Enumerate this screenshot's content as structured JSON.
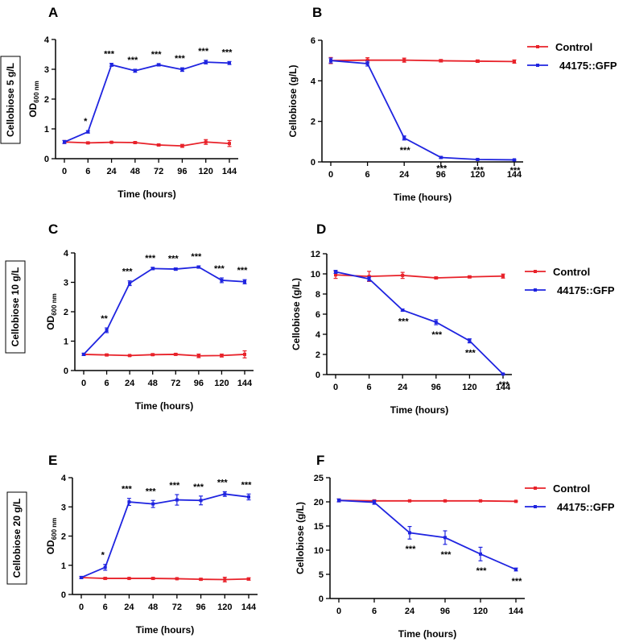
{
  "colors": {
    "control": "#e8222a",
    "gfp": "#1f24e0",
    "axis": "#000000"
  },
  "row_labels": [
    "Cellobiose 5 g/L",
    "Cellobiose 10 g/L",
    "Cellobiose 20 g/L"
  ],
  "legend": {
    "control": "Control",
    "gfp": "44175::GFP"
  },
  "chart_data": [
    {
      "panel": "A",
      "type": "line",
      "xlabel": "Time (hours)",
      "ylabel_main": "OD",
      "ylabel_sub": "600 nm",
      "categories": [
        "0",
        "6",
        "24",
        "48",
        "72",
        "96",
        "120",
        "144"
      ],
      "ylim": [
        0,
        4
      ],
      "yticks": [
        0,
        1,
        2,
        3,
        4
      ],
      "series": [
        {
          "name": "Control",
          "values": [
            0.56,
            0.53,
            0.55,
            0.54,
            0.46,
            0.43,
            0.56,
            0.51
          ],
          "errors": [
            0.05,
            0.03,
            0.02,
            0.03,
            0.03,
            0.05,
            0.08,
            0.1
          ]
        },
        {
          "name": "44175::GFP",
          "values": [
            0.56,
            0.9,
            3.15,
            2.95,
            3.15,
            2.99,
            3.24,
            3.21
          ],
          "errors": [
            0.05,
            0.04,
            0.05,
            0.05,
            0.04,
            0.06,
            0.06,
            0.05
          ]
        }
      ],
      "significance": [
        "",
        "*",
        "***",
        "***",
        "***",
        "***",
        "***",
        "***"
      ]
    },
    {
      "panel": "B",
      "type": "line",
      "xlabel": "Time (hours)",
      "ylabel_main": "Cellobiose (g/L)",
      "ylabel_sub": "",
      "categories": [
        "0",
        "6",
        "24",
        "96",
        "120",
        "144"
      ],
      "ylim": [
        0,
        6
      ],
      "yticks": [
        0,
        2,
        4,
        6
      ],
      "series": [
        {
          "name": "Control",
          "values": [
            5.0,
            5.02,
            5.02,
            4.99,
            4.97,
            4.95
          ],
          "errors": [
            0.15,
            0.12,
            0.1,
            0.06,
            0.06,
            0.08
          ]
        },
        {
          "name": "44175::GFP",
          "values": [
            5.0,
            4.85,
            1.18,
            0.22,
            0.12,
            0.1
          ],
          "errors": [
            0.12,
            0.12,
            0.1,
            0.05,
            0.03,
            0.03
          ]
        }
      ],
      "significance": [
        "",
        "",
        "***",
        "***",
        "***",
        "***"
      ],
      "legend_loc": "right"
    },
    {
      "panel": "C",
      "type": "line",
      "xlabel": "Time (hours)",
      "ylabel_main": "OD",
      "ylabel_sub": "600 nm",
      "categories": [
        "0",
        "6",
        "24",
        "48",
        "72",
        "96",
        "120",
        "144"
      ],
      "ylim": [
        0,
        4
      ],
      "yticks": [
        0,
        1,
        2,
        3,
        4
      ],
      "series": [
        {
          "name": "Control",
          "values": [
            0.55,
            0.53,
            0.51,
            0.54,
            0.55,
            0.5,
            0.51,
            0.55
          ],
          "errors": [
            0.03,
            0.03,
            0.02,
            0.03,
            0.03,
            0.06,
            0.05,
            0.12
          ]
        },
        {
          "name": "44175::GFP",
          "values": [
            0.55,
            1.37,
            2.97,
            3.47,
            3.45,
            3.52,
            3.07,
            3.02
          ],
          "errors": [
            0.04,
            0.08,
            0.08,
            0.04,
            0.04,
            0.04,
            0.08,
            0.07
          ]
        }
      ],
      "significance": [
        "",
        "**",
        "***",
        "***",
        "***",
        "***",
        "***",
        "***"
      ]
    },
    {
      "panel": "D",
      "type": "line",
      "xlabel": "Time (hours)",
      "ylabel_main": "Cellobiose (g/L)",
      "ylabel_sub": "",
      "categories": [
        "0",
        "6",
        "24",
        "96",
        "120",
        "144"
      ],
      "ylim": [
        0,
        12
      ],
      "yticks": [
        0,
        2,
        4,
        6,
        8,
        10,
        12
      ],
      "series": [
        {
          "name": "Control",
          "values": [
            9.9,
            9.75,
            9.85,
            9.6,
            9.7,
            9.78
          ],
          "errors": [
            0.35,
            0.5,
            0.3,
            0.1,
            0.1,
            0.2
          ]
        },
        {
          "name": "44175::GFP",
          "values": [
            10.2,
            9.5,
            6.4,
            5.2,
            3.35,
            0.05
          ],
          "errors": [
            0.15,
            0.2,
            0.1,
            0.25,
            0.2,
            0.05
          ]
        }
      ],
      "significance": [
        "",
        "",
        "***",
        "***",
        "***",
        "***"
      ],
      "legend_loc": "right"
    },
    {
      "panel": "E",
      "type": "line",
      "xlabel": "Time (hours)",
      "ylabel_main": "OD",
      "ylabel_sub": "600 nm",
      "categories": [
        "0",
        "6",
        "24",
        "48",
        "72",
        "96",
        "120",
        "144"
      ],
      "ylim": [
        0,
        4
      ],
      "yticks": [
        0,
        1,
        2,
        3,
        4
      ],
      "series": [
        {
          "name": "Control",
          "values": [
            0.58,
            0.55,
            0.55,
            0.55,
            0.54,
            0.52,
            0.51,
            0.53
          ],
          "errors": [
            0.03,
            0.03,
            0.02,
            0.03,
            0.02,
            0.03,
            0.08,
            0.04
          ]
        },
        {
          "name": "44175::GFP",
          "values": [
            0.58,
            0.93,
            3.17,
            3.1,
            3.24,
            3.22,
            3.44,
            3.34
          ],
          "errors": [
            0.04,
            0.1,
            0.12,
            0.12,
            0.18,
            0.15,
            0.08,
            0.1
          ]
        }
      ],
      "significance": [
        "",
        "*",
        "***",
        "***",
        "***",
        "***",
        "***",
        "***"
      ]
    },
    {
      "panel": "F",
      "type": "line",
      "xlabel": "Time (hours)",
      "ylabel_main": "Cellobiose (g/L)",
      "ylabel_sub": "",
      "categories": [
        "0",
        "6",
        "24",
        "96",
        "120",
        "144"
      ],
      "ylim": [
        0,
        25
      ],
      "yticks": [
        0,
        5,
        10,
        15,
        20,
        25
      ],
      "series": [
        {
          "name": "Control",
          "values": [
            20.3,
            20.2,
            20.2,
            20.2,
            20.2,
            20.1
          ],
          "errors": [
            0.3,
            0.2,
            0.1,
            0.1,
            0.1,
            0.1
          ]
        },
        {
          "name": "44175::GFP",
          "values": [
            20.3,
            19.9,
            13.6,
            12.6,
            9.2,
            6.0
          ],
          "errors": [
            0.3,
            0.4,
            1.3,
            1.4,
            1.4,
            0.3
          ]
        }
      ],
      "significance": [
        "",
        "",
        "***",
        "***",
        "***",
        "***"
      ],
      "legend_loc": "right"
    }
  ]
}
